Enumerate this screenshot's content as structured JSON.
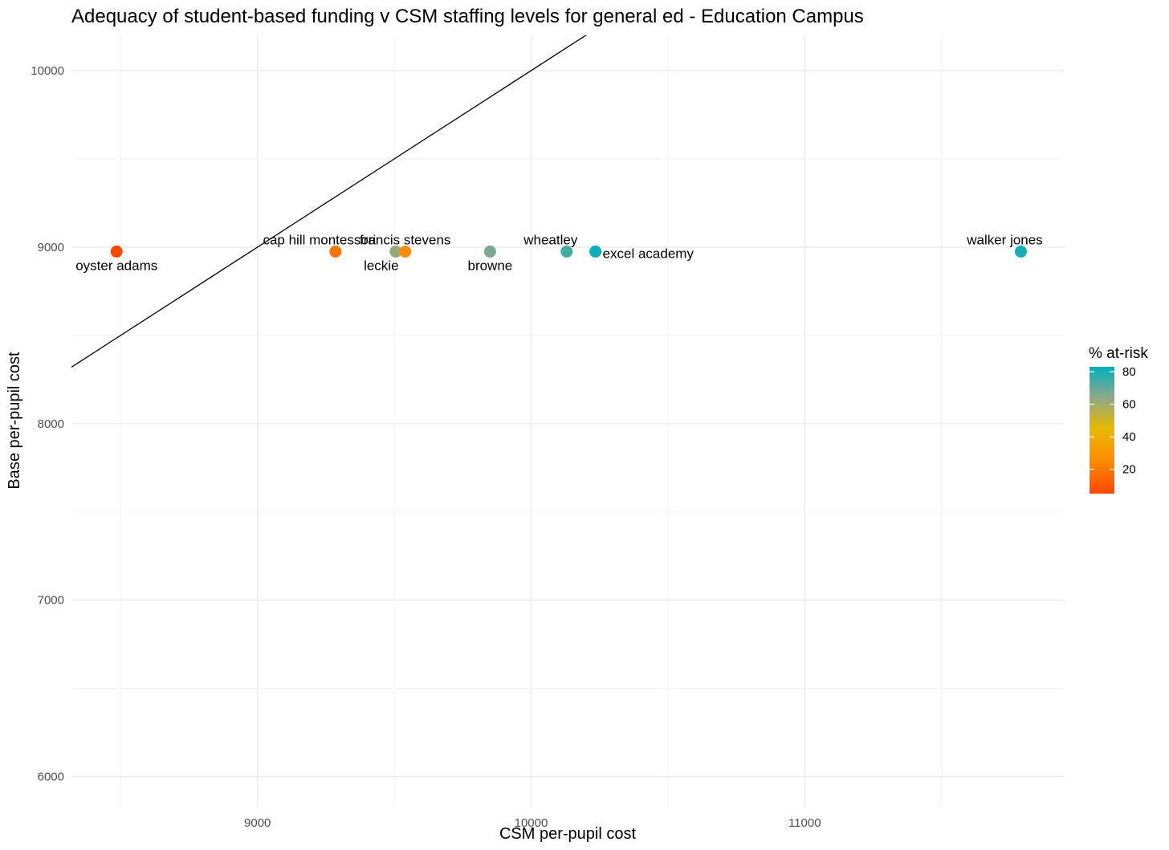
{
  "chart_data": {
    "type": "scatter",
    "title": "Adequacy of student-based funding v CSM staffing levels for general ed - Education Campus",
    "xlabel": "CSM per-pupil cost",
    "ylabel": "Base per-pupil cost",
    "xlim": [
      8320,
      11950
    ],
    "ylim": [
      5830,
      10200
    ],
    "x_ticks": [
      9000,
      10000,
      11000
    ],
    "y_ticks": [
      6000,
      7000,
      8000,
      9000,
      10000
    ],
    "grid": true,
    "reference_line": {
      "slope": 1,
      "intercept": 0
    },
    "color_scale": {
      "title": "% at-risk",
      "min": 5,
      "max": 83,
      "ticks": [
        20,
        40,
        60,
        80
      ],
      "stops": [
        {
          "value": 5,
          "color": "#ff4500"
        },
        {
          "value": 25,
          "color": "#ff8c00"
        },
        {
          "value": 45,
          "color": "#e7b800"
        },
        {
          "value": 65,
          "color": "#8aa88e"
        },
        {
          "value": 83,
          "color": "#00afbb"
        }
      ],
      "placement": "right"
    },
    "points": [
      {
        "label": "oyster adams",
        "x": 8485,
        "y": 8975,
        "at_risk": 6,
        "label_pos": "below"
      },
      {
        "label": "cap hill montessori",
        "x": 9285,
        "y": 8975,
        "at_risk": 19,
        "label_pos": "above-left"
      },
      {
        "label": "leckie",
        "x": 9505,
        "y": 8975,
        "at_risk": 62,
        "label_pos": "below-left"
      },
      {
        "label": "francis stevens",
        "x": 9540,
        "y": 8975,
        "at_risk": 25,
        "label_pos": "above"
      },
      {
        "label": "browne",
        "x": 9850,
        "y": 8975,
        "at_risk": 67,
        "label_pos": "below"
      },
      {
        "label": "wheatley",
        "x": 10130,
        "y": 8975,
        "at_risk": 74,
        "label_pos": "above-left"
      },
      {
        "label": "excel academy",
        "x": 10235,
        "y": 8975,
        "at_risk": 82,
        "label_pos": "right"
      },
      {
        "label": "walker jones",
        "x": 11790,
        "y": 8975,
        "at_risk": 80,
        "label_pos": "above-left"
      }
    ]
  }
}
